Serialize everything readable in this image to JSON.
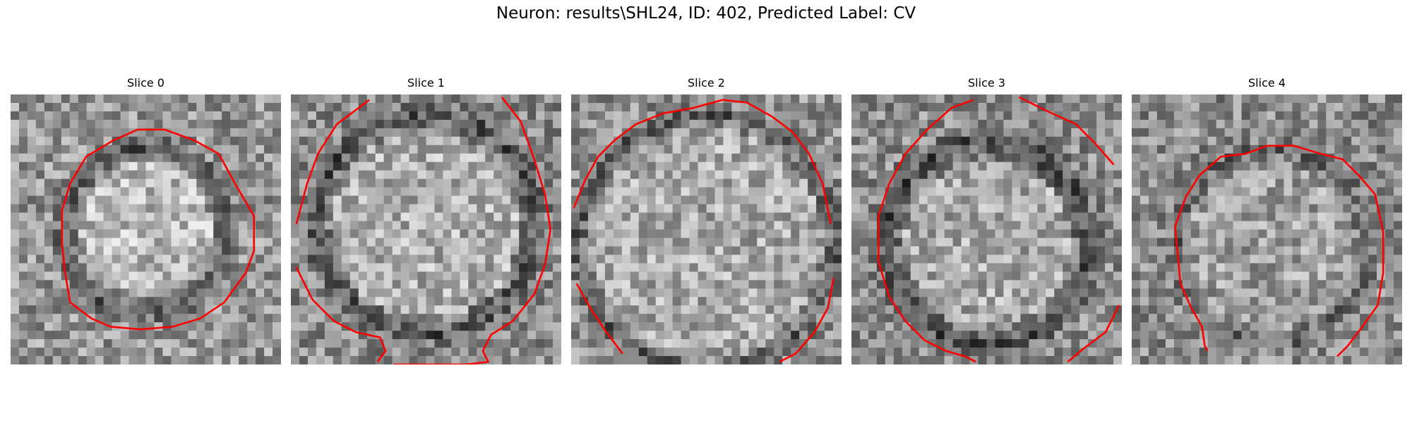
{
  "figure": {
    "title": "Neuron: results\\SHL24, ID: 402, Predicted Label: CV"
  },
  "colors": {
    "contour": "#ff0000",
    "background": "#ffffff"
  },
  "panels": [
    {
      "title": "Slice 0"
    },
    {
      "title": "Slice 1"
    },
    {
      "title": "Slice 2"
    },
    {
      "title": "Slice 3"
    },
    {
      "title": "Slice 4"
    }
  ]
}
